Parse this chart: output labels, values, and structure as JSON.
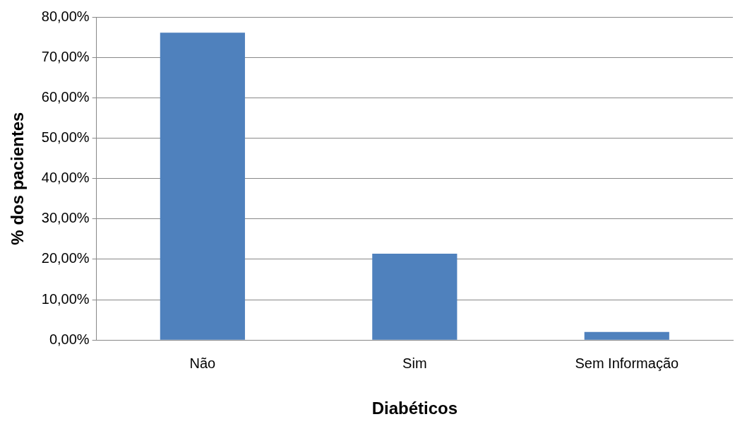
{
  "chart_data": {
    "type": "bar",
    "xlabel": "Diabéticos",
    "ylabel": "% dos pacientes",
    "categories": [
      "Não",
      "Sim",
      "Sem Informação"
    ],
    "values": [
      76.1,
      21.4,
      2.0
    ],
    "color": "#4f81bd",
    "ylim": [
      0,
      80
    ],
    "yticks": [
      {
        "value": 0,
        "label": "0,00%"
      },
      {
        "value": 10,
        "label": "10,00%"
      },
      {
        "value": 20,
        "label": "20,00%"
      },
      {
        "value": 30,
        "label": "30,00%"
      },
      {
        "value": 40,
        "label": "40,00%"
      },
      {
        "value": 50,
        "label": "50,00%"
      },
      {
        "value": 60,
        "label": "60,00%"
      },
      {
        "value": 70,
        "label": "70,00%"
      },
      {
        "value": 80,
        "label": "80,00%"
      }
    ],
    "grid": "y",
    "legend": false
  }
}
